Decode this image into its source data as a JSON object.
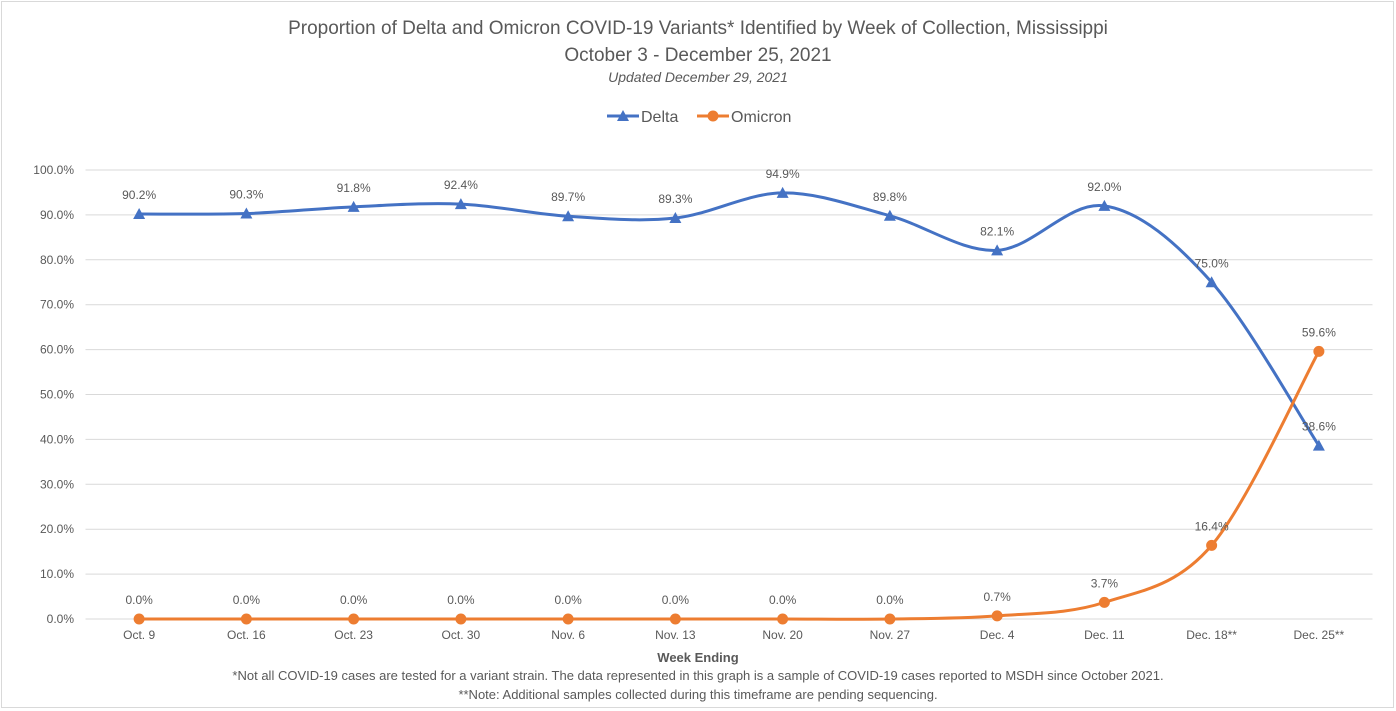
{
  "chart_data": {
    "type": "line",
    "title": "Proportion of Delta and Omicron COVID-19 Variants* Identified by Week of Collection, Mississippi",
    "subtitle": "October 3 - December 25, 2021",
    "updated": "Updated December 29, 2021",
    "xlabel": "Week Ending",
    "ylabel": "",
    "categories": [
      "Oct. 9",
      "Oct. 16",
      "Oct. 23",
      "Oct. 30",
      "Nov. 6",
      "Nov. 13",
      "Nov. 20",
      "Nov. 27",
      "Dec. 4",
      "Dec. 11",
      "Dec. 18**",
      "Dec. 25**"
    ],
    "ylim": [
      0,
      100
    ],
    "yticks": [
      "0.0%",
      "10.0%",
      "20.0%",
      "30.0%",
      "40.0%",
      "50.0%",
      "60.0%",
      "70.0%",
      "80.0%",
      "90.0%",
      "100.0%"
    ],
    "grid": true,
    "legend": "top-center",
    "series": [
      {
        "name": "Delta",
        "color": "#4472c4",
        "marker": "triangle",
        "values": [
          90.2,
          90.3,
          91.8,
          92.4,
          89.7,
          89.3,
          94.9,
          89.8,
          82.1,
          92.0,
          75.0,
          38.6
        ],
        "labels": [
          "90.2%",
          "90.3%",
          "91.8%",
          "92.4%",
          "89.7%",
          "89.3%",
          "94.9%",
          "89.8%",
          "82.1%",
          "92.0%",
          "75.0%",
          "38.6%"
        ]
      },
      {
        "name": "Omicron",
        "color": "#ed7d31",
        "marker": "circle",
        "values": [
          0,
          0,
          0,
          0,
          0,
          0,
          0,
          0,
          0.7,
          3.7,
          16.4,
          59.6
        ],
        "labels": [
          "0.0%",
          "0.0%",
          "0.0%",
          "0.0%",
          "0.0%",
          "0.0%",
          "0.0%",
          "0.0%",
          "0.7%",
          "3.7%",
          "16.4%",
          "59.6%"
        ]
      }
    ],
    "footnotes": [
      "*Not all COVID-19 cases are tested for a variant strain. The data represented in this graph is a sample of COVID-19 cases reported to MSDH since October 2021.",
      "**Note: Additional samples collected during this timeframe are pending sequencing."
    ]
  }
}
